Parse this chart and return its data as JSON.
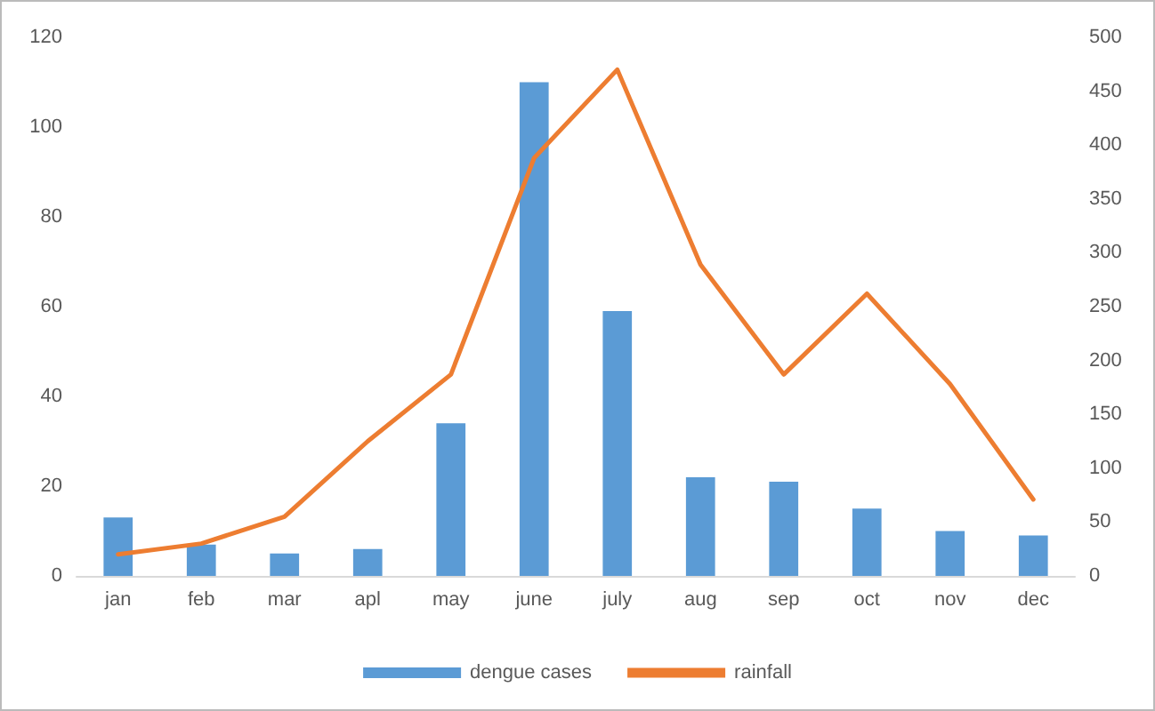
{
  "chart_data": {
    "type": "bar",
    "categories": [
      "jan",
      "feb",
      "mar",
      "apl",
      "may",
      "june",
      "july",
      "aug",
      "sep",
      "oct",
      "nov",
      "dec"
    ],
    "series": [
      {
        "name": "dengue cases",
        "color": "#5b9bd5",
        "values": [
          13,
          7,
          5,
          6,
          34,
          110,
          59,
          22,
          21,
          15,
          10,
          9
        ]
      },
      {
        "name": "rainfall",
        "type": "line",
        "axis": "y2",
        "color": "#ed7d31",
        "marker": "none",
        "values": [
          20,
          30,
          55,
          125,
          187,
          388,
          470,
          289,
          187,
          262,
          178,
          71
        ]
      }
    ],
    "ylim": [
      0,
      120
    ],
    "yticks": [
      0,
      20,
      40,
      60,
      80,
      100,
      120
    ],
    "y2lim": [
      0,
      500
    ],
    "y2ticks": [
      0,
      50,
      100,
      150,
      200,
      250,
      300,
      350,
      400,
      450,
      500
    ],
    "grid": false,
    "legend": "bottom"
  }
}
